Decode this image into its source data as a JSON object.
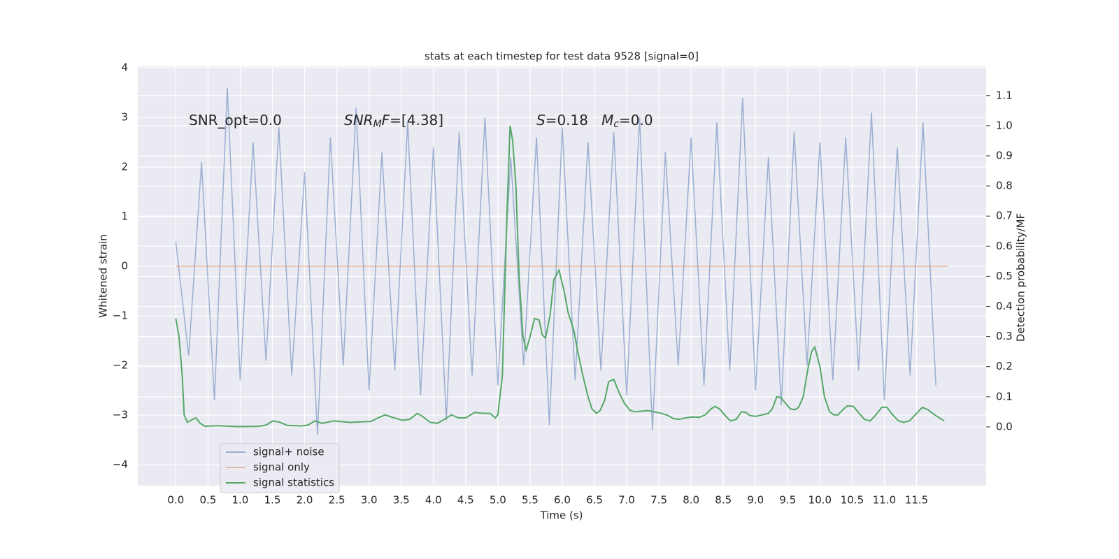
{
  "chart_data": {
    "type": "line",
    "title": "stats at each timestep for test data 9528 [signal=0]",
    "x_label": "Time (s)",
    "y_label": "Whitened strain",
    "y2_label": "Detection probability/MF",
    "xlim": [
      -0.59,
      12.58
    ],
    "ylim": [
      -4.42,
      4.03
    ],
    "y2lim": [
      -0.195,
      1.197
    ],
    "xticks": [
      {
        "value": 0,
        "label": "0.0"
      },
      0.5,
      {
        "value": 1,
        "label": "1.0"
      },
      1.5,
      {
        "value": 2,
        "label": "2.0"
      },
      2.5,
      {
        "value": 3,
        "label": "3.0"
      },
      3.5,
      {
        "value": 4,
        "label": "4.0"
      },
      4.5,
      {
        "value": 5,
        "label": "5.0"
      },
      5.5,
      {
        "value": 6,
        "label": "6.0"
      },
      6.5,
      {
        "value": 7,
        "label": "7.0"
      },
      7.5,
      {
        "value": 8,
        "label": "8.0"
      },
      8.5,
      {
        "value": 9,
        "label": "9.0"
      },
      9.5,
      {
        "value": 10,
        "label": "10.0"
      },
      10.5,
      {
        "value": 11,
        "label": "11.0"
      },
      11.5
    ],
    "yticks": [
      {
        "value": -4,
        "label": "−4"
      },
      {
        "value": -3,
        "label": "−3"
      },
      {
        "value": -2,
        "label": "−2"
      },
      {
        "value": -1,
        "label": "−1"
      },
      0,
      1,
      2,
      3,
      4
    ],
    "y2ticks": [
      {
        "value": 0,
        "label": "0.0"
      },
      0.1,
      0.2,
      0.3,
      0.4,
      0.5,
      0.6,
      0.7,
      0.8,
      0.9,
      {
        "value": 1,
        "label": "1.0"
      },
      1.1
    ],
    "grid": true,
    "legend": "lower left",
    "annotations": [
      {
        "parts": [
          {
            "text": "SNR_opt=0.0"
          }
        ]
      },
      {
        "parts": [
          {
            "text": "SNR",
            "italic": true
          },
          {
            "text": "M",
            "italic": true,
            "sub": true
          },
          {
            "text": "F",
            "italic": true
          },
          {
            "text": "=[4.38]"
          }
        ]
      },
      {
        "parts": [
          {
            "text": "S",
            "italic": true
          },
          {
            "text": "=0.18   "
          },
          {
            "text": "M",
            "italic": true
          },
          {
            "text": "c",
            "italic": true,
            "sub": true
          },
          {
            "text": "=0.0"
          }
        ]
      }
    ],
    "series": [
      {
        "name": "signal+ noise",
        "color": "#4c72b0",
        "alpha": 0.5,
        "axis": "y",
        "x": [
          0,
          0.2,
          0.4,
          0.6,
          0.8,
          1,
          1.2,
          1.4,
          1.6,
          1.8,
          2,
          2.2,
          2.4,
          2.6,
          2.8,
          3,
          3.2,
          3.4,
          3.6,
          3.8,
          4,
          4.2,
          4.4,
          4.6,
          4.8,
          5,
          5.2,
          5.4,
          5.6,
          5.8,
          6,
          6.2,
          6.4,
          6.6,
          6.8,
          7,
          7.2,
          7.4,
          7.6,
          7.8,
          8,
          8.2,
          8.4,
          8.6,
          8.8,
          9,
          9.2,
          9.4,
          9.6,
          9.8,
          10,
          10.2,
          10.4,
          10.6,
          10.8,
          11,
          11.2,
          11.4,
          11.6,
          11.8
        ],
        "values": [
          0.5,
          -1.8,
          2.1,
          -2.7,
          3.6,
          -2.3,
          2.5,
          -1.9,
          2.8,
          -2.2,
          1.9,
          -3.4,
          2.6,
          -2.0,
          3.2,
          -2.5,
          2.3,
          -2.1,
          2.9,
          -2.6,
          2.4,
          -3.1,
          2.7,
          -2.2,
          3.0,
          -2.4,
          2.2,
          -2.0,
          2.6,
          -3.2,
          2.8,
          -2.3,
          2.5,
          -2.1,
          2.7,
          -2.6,
          3.0,
          -3.3,
          2.3,
          -2.0,
          2.6,
          -2.4,
          2.9,
          -2.1,
          3.4,
          -2.5,
          2.2,
          -2.8,
          2.7,
          -2.0,
          2.5,
          -2.3,
          2.6,
          -2.1,
          3.1,
          -2.7,
          2.4,
          -2.2,
          2.9,
          -2.4
        ]
      },
      {
        "name": "signal only",
        "color": "#dd8452",
        "alpha": 0.5,
        "axis": "y",
        "x": [
          0,
          11.99
        ],
        "values": [
          0,
          0
        ]
      },
      {
        "name": "signal statistics",
        "color": "#55a868",
        "alpha": 1,
        "axis": "y2",
        "x": [
          0,
          0.05,
          0.1,
          0.13,
          0.18,
          0.26,
          0.31,
          0.38,
          0.45,
          0.64,
          0.97,
          1.29,
          1.4,
          1.51,
          1.62,
          1.73,
          1.94,
          2.05,
          2.16,
          2.27,
          2.46,
          2.7,
          3.03,
          3.14,
          3.25,
          3.36,
          3.52,
          3.63,
          3.75,
          3.83,
          3.95,
          4.06,
          4.17,
          4.28,
          4.39,
          4.5,
          4.64,
          4.77,
          4.88,
          4.96,
          5.0,
          5.07,
          5.14,
          5.19,
          5.23,
          5.28,
          5.33,
          5.39,
          5.44,
          5.5,
          5.57,
          5.64,
          5.69,
          5.74,
          5.81,
          5.87,
          5.95,
          6.03,
          6.09,
          6.18,
          6.24,
          6.32,
          6.4,
          6.46,
          6.53,
          6.59,
          6.66,
          6.72,
          6.8,
          6.87,
          6.96,
          7.05,
          7.13,
          7.22,
          7.32,
          7.43,
          7.54,
          7.64,
          7.72,
          7.81,
          7.92,
          8.02,
          8.13,
          8.22,
          8.31,
          8.37,
          8.44,
          8.52,
          8.61,
          8.7,
          8.78,
          8.85,
          8.91,
          9.0,
          9.11,
          9.2,
          9.26,
          9.33,
          9.39,
          9.48,
          9.54,
          9.61,
          9.67,
          9.74,
          9.82,
          9.87,
          9.92,
          10.0,
          10.07,
          10.15,
          10.22,
          10.28,
          10.37,
          10.43,
          10.52,
          10.61,
          10.69,
          10.78,
          10.87,
          10.96,
          11.04,
          11.13,
          11.22,
          11.3,
          11.39,
          11.48,
          11.59,
          11.67,
          11.78,
          11.93
        ],
        "values": [
          0.36,
          0.3,
          0.17,
          0.04,
          0.015,
          0.025,
          0.03,
          0.012,
          0.002,
          0.004,
          0.001,
          0.002,
          0.006,
          0.02,
          0.015,
          0.005,
          0.003,
          0.006,
          0.02,
          0.012,
          0.02,
          0.015,
          0.018,
          0.03,
          0.04,
          0.032,
          0.022,
          0.025,
          0.045,
          0.035,
          0.015,
          0.012,
          0.025,
          0.04,
          0.03,
          0.03,
          0.048,
          0.045,
          0.045,
          0.03,
          0.04,
          0.17,
          0.7,
          1.0,
          0.95,
          0.8,
          0.5,
          0.3,
          0.255,
          0.3,
          0.36,
          0.355,
          0.305,
          0.295,
          0.37,
          0.49,
          0.52,
          0.45,
          0.38,
          0.32,
          0.25,
          0.17,
          0.1,
          0.06,
          0.045,
          0.055,
          0.09,
          0.15,
          0.158,
          0.12,
          0.08,
          0.055,
          0.05,
          0.052,
          0.054,
          0.05,
          0.045,
          0.038,
          0.028,
          0.025,
          0.03,
          0.033,
          0.032,
          0.04,
          0.06,
          0.068,
          0.06,
          0.04,
          0.02,
          0.025,
          0.05,
          0.048,
          0.038,
          0.035,
          0.04,
          0.045,
          0.06,
          0.1,
          0.098,
          0.075,
          0.06,
          0.057,
          0.065,
          0.1,
          0.2,
          0.25,
          0.265,
          0.2,
          0.1,
          0.05,
          0.04,
          0.04,
          0.06,
          0.07,
          0.068,
          0.045,
          0.025,
          0.02,
          0.04,
          0.065,
          0.065,
          0.04,
          0.02,
          0.015,
          0.02,
          0.04,
          0.065,
          0.058,
          0.04,
          0.02
        ]
      }
    ]
  }
}
